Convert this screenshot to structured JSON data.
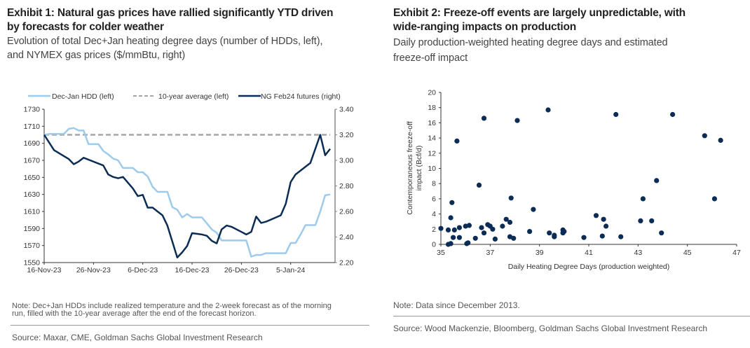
{
  "exhibit1": {
    "title_line1": "Exhibit 1: Natural gas prices have rallied significantly YTD driven",
    "title_line2": "by forecasts for colder weather",
    "subtitle_line1": "Evolution of total Dec+Jan heating degree days (number of HDDs, left),",
    "subtitle_line2": "and NYMEX gas prices ($/mmBtu, right)",
    "note_line1": "Note: Dec+Jan HDDs include realized temperature and the 2-week forecast as of the morning",
    "note_line2": "run, filled with the 10-year average after the end of the forecast horizon.",
    "source": "Source: Maxar, CME, Goldman Sachs Global Investment Research"
  },
  "exhibit2": {
    "title_line1": "Exhibit 2: Freeze-off events are largely unpredictable, with",
    "title_line2": "wide-ranging impacts on production",
    "subtitle_line1": "Daily production-weighted heating degree days and estimated",
    "subtitle_line2": "freeze-off impact",
    "note": "Note: Data since December 2013.",
    "source": "Source: Wood Mackenzie, Bloomberg, Goldman Sachs Global Investment Research"
  },
  "chart_data": [
    {
      "type": "line",
      "title": "Exhibit 1",
      "x_tick_labels": [
        "16-Nov-23",
        "26-Nov-23",
        "6-Dec-23",
        "16-Dec-23",
        "26-Dec-23",
        "5-Jan-24"
      ],
      "x_day_range": [
        0,
        59
      ],
      "y_left": {
        "range": [
          1550,
          1730
        ],
        "ticks": [
          "1550",
          "1570",
          "1590",
          "1610",
          "1630",
          "1650",
          "1670",
          "1690",
          "1710",
          "1730"
        ]
      },
      "y_right": {
        "range": [
          2.2,
          3.4
        ],
        "ticks": [
          "2.20",
          "2.40",
          "2.60",
          "2.80",
          "3.00",
          "3.20",
          "3.40"
        ]
      },
      "legend_position": "top",
      "series": [
        {
          "name": "Dec-Jan HDD (left)",
          "axis": "left",
          "color": "#9ccbeb",
          "style": "solid",
          "x": [
            0,
            1,
            2,
            3,
            4,
            5,
            6,
            7,
            8,
            9,
            10,
            11,
            12,
            13,
            14,
            15,
            16,
            17,
            18,
            19,
            20,
            21,
            22,
            23,
            24,
            25,
            26,
            27,
            28,
            29,
            30,
            31,
            32,
            33,
            34,
            35,
            36,
            37,
            38,
            39,
            40,
            41,
            42,
            43,
            44,
            45,
            46,
            47,
            48,
            49,
            50,
            51,
            52,
            53,
            54,
            55,
            56,
            57,
            58
          ],
          "values": [
            1700,
            1701,
            1701,
            1701,
            1701,
            1707,
            1708,
            1705,
            1705,
            1689,
            1689,
            1689,
            1681,
            1677,
            1672,
            1670,
            1661,
            1661,
            1661,
            1656,
            1656,
            1651,
            1639,
            1633,
            1633,
            1633,
            1615,
            1612,
            1603,
            1607,
            1603,
            1603,
            1603,
            1596,
            1589,
            1585,
            1576,
            1576,
            1576,
            1576,
            1576,
            1576,
            1557,
            1559,
            1559,
            1561,
            1561,
            1561,
            1561,
            1561,
            1573,
            1573,
            1583,
            1594,
            1594,
            1594,
            1610,
            1629,
            1630
          ]
        },
        {
          "name": "10-year average (left)",
          "axis": "left",
          "color": "#a6a6a6",
          "style": "dashed",
          "x": [
            0,
            58
          ],
          "values": [
            1700,
            1700
          ]
        },
        {
          "name": "NG Feb24 futures (right)",
          "axis": "right",
          "color": "#0b2d55",
          "style": "solid",
          "x": [
            0,
            2,
            5,
            6,
            7,
            8,
            12,
            13,
            14,
            15,
            16,
            18,
            19,
            20,
            21,
            22,
            24,
            25,
            27,
            28,
            29,
            30,
            32,
            33,
            34,
            35,
            36,
            37,
            38,
            40,
            41,
            42,
            43,
            44,
            45,
            48,
            49,
            50,
            51,
            52,
            53,
            54,
            56,
            57,
            58
          ],
          "values": [
            3.2,
            3.08,
            3.01,
            2.97,
            2.99,
            3.02,
            2.96,
            2.89,
            2.87,
            2.86,
            2.87,
            2.78,
            2.72,
            2.73,
            2.63,
            2.63,
            2.57,
            2.49,
            2.24,
            2.28,
            2.33,
            2.43,
            2.42,
            2.41,
            2.37,
            2.35,
            2.46,
            2.49,
            2.48,
            2.44,
            2.42,
            2.44,
            2.56,
            2.51,
            2.52,
            2.57,
            2.66,
            2.83,
            2.89,
            2.92,
            2.95,
            2.98,
            3.2,
            3.04,
            3.09
          ]
        }
      ]
    },
    {
      "type": "scatter",
      "title": "Exhibit 2",
      "xlabel": "Daily Heating Degree Days (production weighted)",
      "ylabel": "Contemporaneous freeze-off impact (Bcf/d)",
      "xlim": [
        35,
        47
      ],
      "ylim": [
        0,
        20
      ],
      "x_ticks": [
        "35",
        "37",
        "39",
        "41",
        "43",
        "45",
        "47"
      ],
      "y_ticks": [
        "0",
        "2",
        "4",
        "6",
        "8",
        "10",
        "12",
        "14",
        "16",
        "18",
        "20"
      ],
      "color": "#0b2d55",
      "points": [
        [
          35.0,
          2.1
        ],
        [
          35.3,
          1.9
        ],
        [
          35.3,
          0.0
        ],
        [
          35.4,
          0.1
        ],
        [
          35.4,
          3.5
        ],
        [
          35.45,
          5.5
        ],
        [
          35.5,
          0.9
        ],
        [
          35.55,
          1.9
        ],
        [
          35.65,
          13.6
        ],
        [
          35.75,
          2.2
        ],
        [
          35.75,
          0.9
        ],
        [
          36.0,
          2.4
        ],
        [
          36.05,
          0.1
        ],
        [
          36.1,
          0.2
        ],
        [
          36.15,
          2.5
        ],
        [
          36.4,
          0.8
        ],
        [
          36.55,
          7.8
        ],
        [
          36.65,
          2.2
        ],
        [
          36.75,
          1.5
        ],
        [
          36.75,
          16.6
        ],
        [
          36.9,
          2.6
        ],
        [
          37.0,
          2.4
        ],
        [
          37.1,
          2.0
        ],
        [
          37.2,
          0.7
        ],
        [
          37.5,
          2.4
        ],
        [
          37.65,
          3.3
        ],
        [
          37.8,
          2.9
        ],
        [
          37.8,
          1.0
        ],
        [
          37.85,
          6.1
        ],
        [
          37.95,
          0.8
        ],
        [
          38.1,
          16.3
        ],
        [
          38.6,
          1.7
        ],
        [
          38.75,
          4.6
        ],
        [
          39.35,
          17.7
        ],
        [
          39.4,
          1.5
        ],
        [
          39.6,
          1.2
        ],
        [
          39.6,
          1.0
        ],
        [
          39.95,
          1.9
        ],
        [
          39.95,
          1.5
        ],
        [
          40.0,
          1.7
        ],
        [
          40.8,
          0.9
        ],
        [
          41.3,
          3.8
        ],
        [
          41.55,
          1.1
        ],
        [
          41.6,
          3.3
        ],
        [
          41.7,
          2.4
        ],
        [
          42.1,
          17.1
        ],
        [
          42.3,
          1.0
        ],
        [
          43.1,
          3.1
        ],
        [
          43.2,
          6.0
        ],
        [
          43.55,
          3.1
        ],
        [
          43.75,
          8.4
        ],
        [
          43.95,
          1.5
        ],
        [
          44.4,
          17.1
        ],
        [
          45.7,
          14.3
        ],
        [
          46.1,
          6.0
        ],
        [
          46.35,
          13.7
        ]
      ]
    }
  ]
}
